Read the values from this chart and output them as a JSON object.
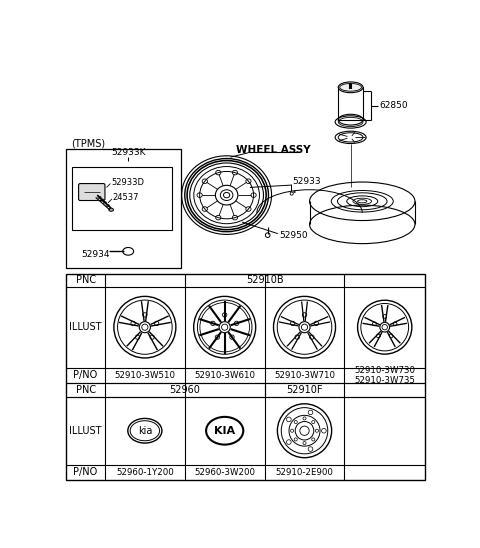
{
  "bg_color": "#ffffff",
  "tpms_label": "(TPMS)",
  "tpms_parts": [
    "52933K",
    "52933D",
    "24537",
    "52934"
  ],
  "wheel_label": "WHEEL ASSY",
  "wheel_parts": [
    "52933",
    "52950"
  ],
  "spare_part": "62850",
  "table_pnc1": "52910B",
  "table_pnc2a": "52960",
  "table_pnc2b": "52910F",
  "table_pno_row1": [
    "52910-3W510",
    "52910-3W610",
    "52910-3W710",
    "52910-3W730\n52910-3W735"
  ],
  "table_pno_row2": [
    "52960-1Y200",
    "52960-3W200",
    "52910-2E900"
  ],
  "table_labels": [
    "PNC",
    "ILLUST",
    "P/NO",
    "PNC",
    "ILLUST",
    "P/NO"
  ]
}
